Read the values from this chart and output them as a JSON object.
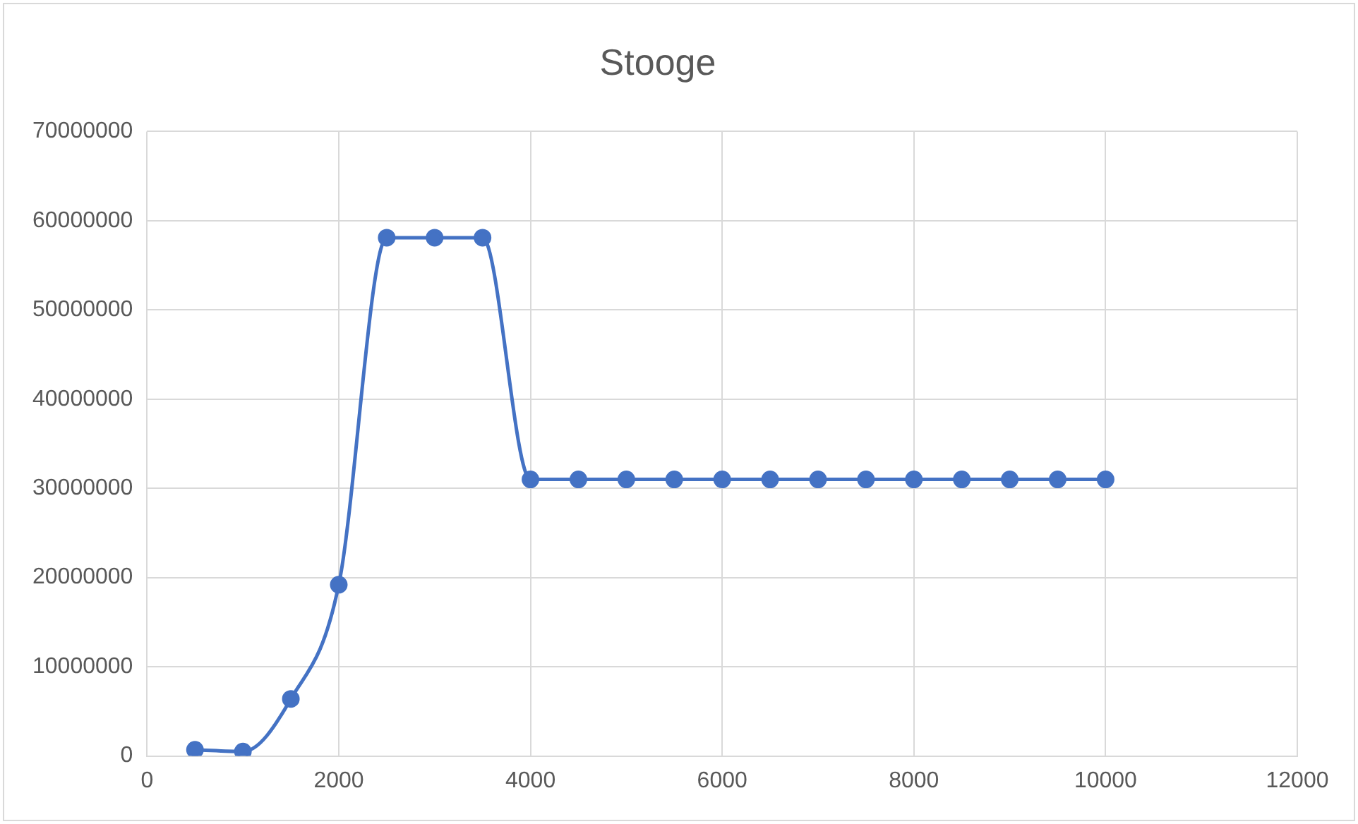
{
  "chart_data": {
    "type": "line",
    "title": "Stooge",
    "x": [
      500,
      1000,
      1500,
      2000,
      2500,
      3000,
      3500,
      4000,
      4500,
      5000,
      5500,
      6000,
      6500,
      7000,
      7500,
      8000,
      8500,
      9000,
      9500,
      10000
    ],
    "series": [
      {
        "color": "#4472c4",
        "values": [
          700000,
          500000,
          6400000,
          19200000,
          58100000,
          58100000,
          58100000,
          31000000,
          31000000,
          31000000,
          31000000,
          31000000,
          31000000,
          31000000,
          31000000,
          31000000,
          31000000,
          31000000,
          31000000,
          31000000
        ]
      }
    ],
    "xlim": [
      0,
      12000
    ],
    "xticks": [
      0,
      2000,
      4000,
      6000,
      8000,
      10000,
      12000
    ],
    "ylim": [
      0,
      70000000
    ],
    "yticks": [
      0,
      10000000,
      20000000,
      30000000,
      40000000,
      50000000,
      60000000,
      70000000
    ],
    "grid": true,
    "legend": false,
    "marker": "circle",
    "line_style": "solid"
  }
}
